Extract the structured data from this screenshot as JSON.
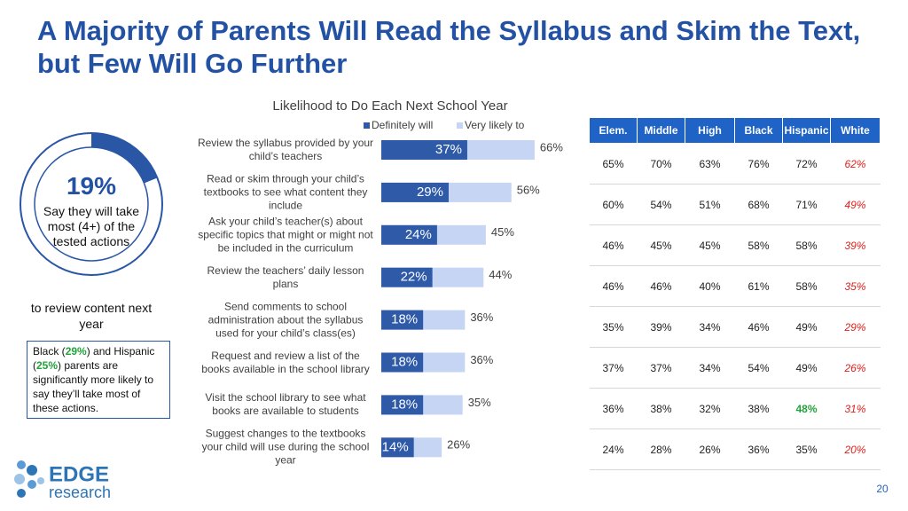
{
  "title": "A Majority of Parents Will Read the Syllabus and Skim the Text, but Few Will Go Further",
  "donut": {
    "value": 19,
    "value_label": "19%",
    "caption": "Say they will take most (4+) of the tested actions",
    "note": "to review content next year"
  },
  "callout": [
    "Black (",
    "29%",
    ") and Hispanic (",
    "25%",
    ") parents are significantly more likely to say they’ll take most of these actions."
  ],
  "chart_data": {
    "type": "bar",
    "title": "Likelihood to Do Each Next School Year",
    "categories": [
      "Review the syllabus provided by your child’s teachers",
      "Read or skim through your child’s textbooks to see what content they include",
      "Ask your child’s teacher(s) about specific topics that might or might not be included in the curriculum",
      "Review the teachers’ daily lesson plans",
      "Send comments to school administration about the syllabus used for your child’s class(es)",
      "Request and review a list of the books available in the school library",
      "Visit the school library to see what books are available to students",
      "Suggest changes to the textbooks your child will use during the school year"
    ],
    "series": [
      {
        "name": "Definitely will",
        "color": "#2e5aa8",
        "values": [
          37,
          29,
          24,
          22,
          18,
          18,
          18,
          14
        ],
        "value_labels": [
          "37%",
          "29%",
          "24%",
          "22%",
          "18%",
          "18%",
          "18%",
          "14%"
        ]
      },
      {
        "name": "Very likely to",
        "color": "#c5d5f3",
        "values": [
          66,
          56,
          45,
          44,
          36,
          36,
          35,
          26
        ],
        "value_labels": [
          "66%",
          "56%",
          "45%",
          "44%",
          "36%",
          "36%",
          "35%",
          "26%"
        ]
      }
    ],
    "xlim": [
      0,
      100
    ]
  },
  "table": {
    "header": [
      "Elem.",
      "Middle",
      "High",
      "Black",
      "Hispanic",
      "White"
    ],
    "rows": [
      [
        "65%",
        "70%",
        "63%",
        "76%",
        "72%",
        "62%"
      ],
      [
        "60%",
        "54%",
        "51%",
        "68%",
        "71%",
        "49%"
      ],
      [
        "46%",
        "45%",
        "45%",
        "58%",
        "58%",
        "39%"
      ],
      [
        "46%",
        "46%",
        "40%",
        "61%",
        "58%",
        "35%"
      ],
      [
        "35%",
        "39%",
        "34%",
        "46%",
        "49%",
        "29%"
      ],
      [
        "37%",
        "37%",
        "34%",
        "54%",
        "49%",
        "26%"
      ],
      [
        "36%",
        "38%",
        "32%",
        "38%",
        "48%",
        "31%"
      ],
      [
        "24%",
        "28%",
        "26%",
        "36%",
        "35%",
        "20%"
      ]
    ],
    "highlight": [
      [
        6,
        4
      ]
    ]
  },
  "logo": {
    "name": "EDGE",
    "sub": "research"
  },
  "page_number": "20"
}
